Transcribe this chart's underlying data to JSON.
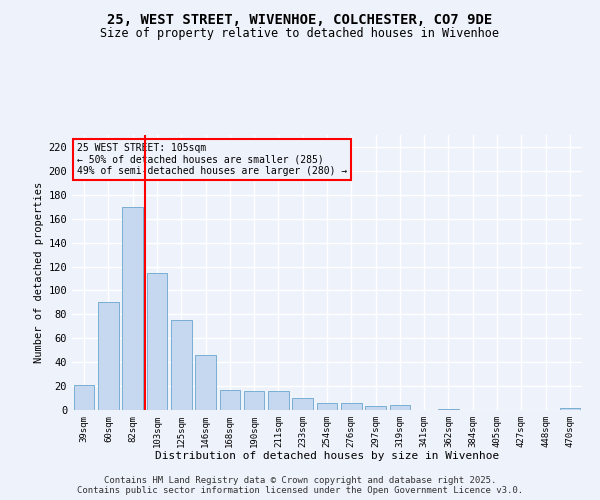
{
  "title_line1": "25, WEST STREET, WIVENHOE, COLCHESTER, CO7 9DE",
  "title_line2": "Size of property relative to detached houses in Wivenhoe",
  "categories": [
    "39sqm",
    "60sqm",
    "82sqm",
    "103sqm",
    "125sqm",
    "146sqm",
    "168sqm",
    "190sqm",
    "211sqm",
    "233sqm",
    "254sqm",
    "276sqm",
    "297sqm",
    "319sqm",
    "341sqm",
    "362sqm",
    "384sqm",
    "405sqm",
    "427sqm",
    "448sqm",
    "470sqm"
  ],
  "values": [
    21,
    90,
    170,
    115,
    75,
    46,
    17,
    16,
    16,
    10,
    6,
    6,
    3,
    4,
    0,
    1,
    0,
    0,
    0,
    0,
    2
  ],
  "bar_color": "#c5d8ef",
  "bar_edge_color": "#7aaed4",
  "vline_color": "red",
  "annotation_text": "25 WEST STREET: 105sqm\n← 50% of detached houses are smaller (285)\n49% of semi-detached houses are larger (280) →",
  "annotation_box_color": "red",
  "xlabel": "Distribution of detached houses by size in Wivenhoe",
  "ylabel": "Number of detached properties",
  "ylim": [
    0,
    230
  ],
  "yticks": [
    0,
    20,
    40,
    60,
    80,
    100,
    120,
    140,
    160,
    180,
    200,
    220
  ],
  "background_color": "#eef2fb",
  "grid_color": "#ffffff",
  "footer_line1": "Contains HM Land Registry data © Crown copyright and database right 2025.",
  "footer_line2": "Contains public sector information licensed under the Open Government Licence v3.0."
}
